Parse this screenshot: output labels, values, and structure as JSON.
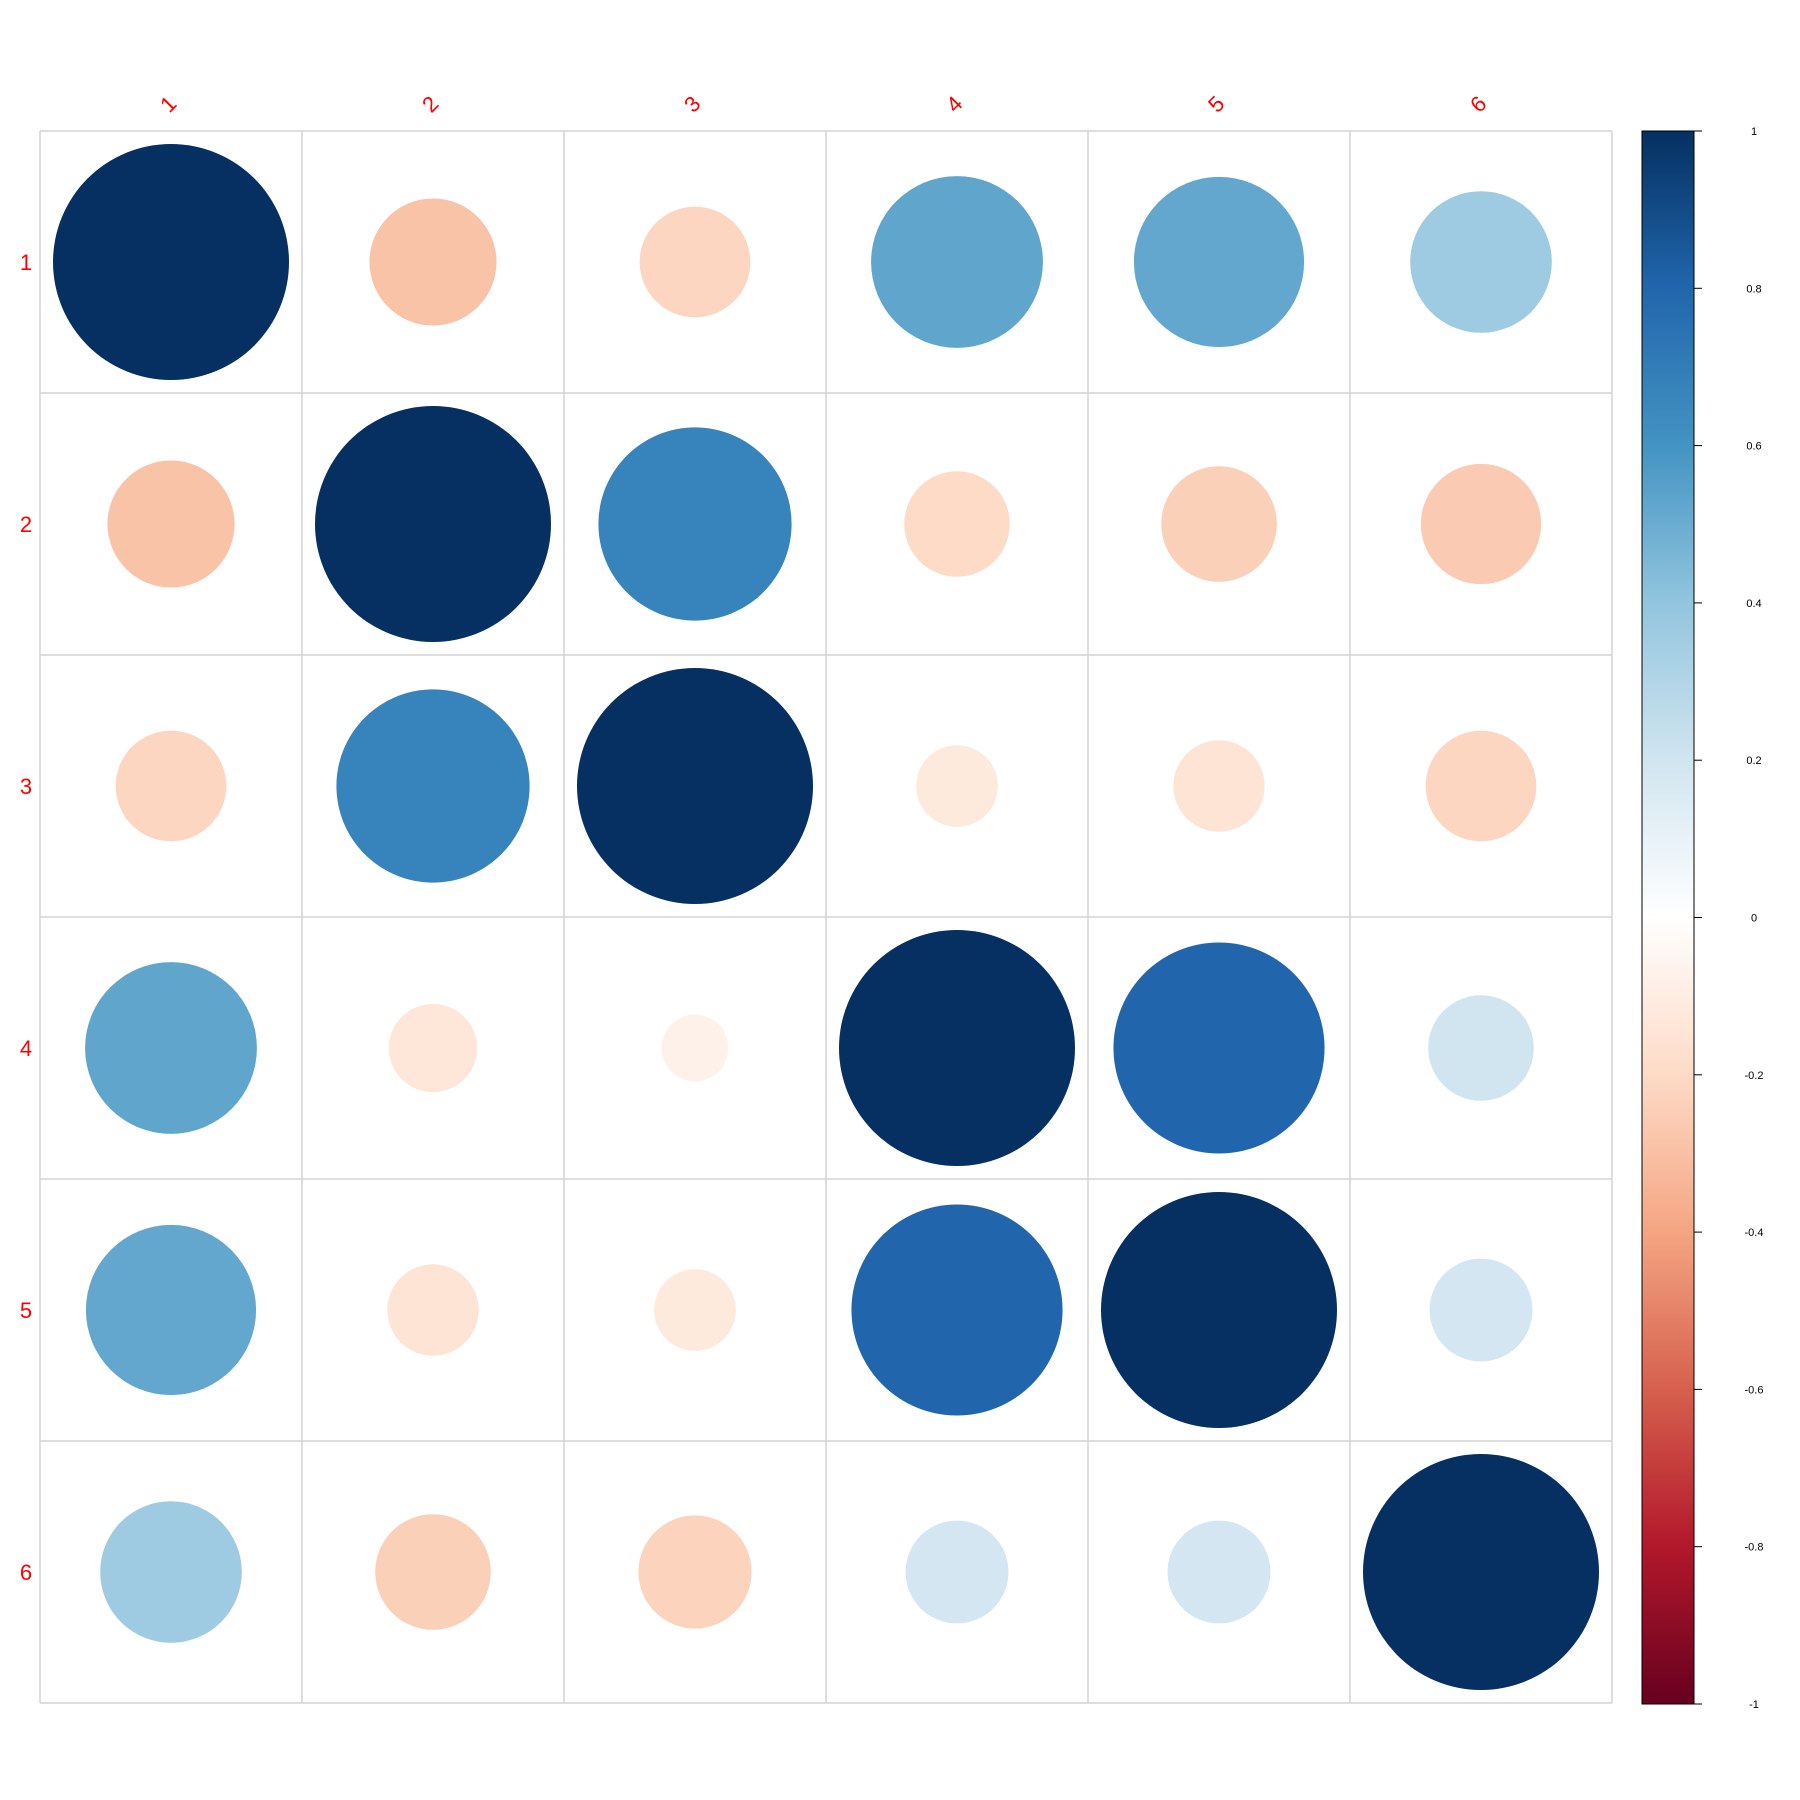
{
  "chart_data": {
    "type": "heatmap",
    "variant": "correlation-circles",
    "title": "",
    "row_labels": [
      "1",
      "2",
      "3",
      "4",
      "5",
      "6"
    ],
    "col_labels": [
      "1",
      "2",
      "3",
      "4",
      "5",
      "6"
    ],
    "matrix": [
      [
        1.0,
        -0.29,
        -0.22,
        0.53,
        0.52,
        0.36
      ],
      [
        -0.29,
        1.0,
        0.67,
        -0.2,
        -0.24,
        -0.26
      ],
      [
        -0.22,
        0.67,
        1.0,
        -0.12,
        -0.15,
        -0.22
      ],
      [
        0.53,
        -0.14,
        -0.08,
        1.0,
        0.8,
        0.2
      ],
      [
        0.52,
        -0.15,
        -0.12,
        0.8,
        1.0,
        0.19
      ],
      [
        0.36,
        -0.24,
        -0.23,
        0.19,
        0.19,
        1.0
      ]
    ],
    "colorbar": {
      "ticks": [
        "1",
        "0.8",
        "0.6",
        "0.4",
        "0.2",
        "0",
        "-0.2",
        "-0.4",
        "-0.6",
        "-0.8",
        "-1"
      ],
      "range": [
        -1,
        1
      ],
      "colors": [
        "#67001F",
        "#B2182B",
        "#D6604D",
        "#F4A582",
        "#FDDBC7",
        "#FFFFFF",
        "#D1E5F0",
        "#92C5DE",
        "#4393C3",
        "#2166AC",
        "#053061"
      ]
    },
    "grid": true,
    "label_color": "#ff0000",
    "legend_position": "right"
  }
}
